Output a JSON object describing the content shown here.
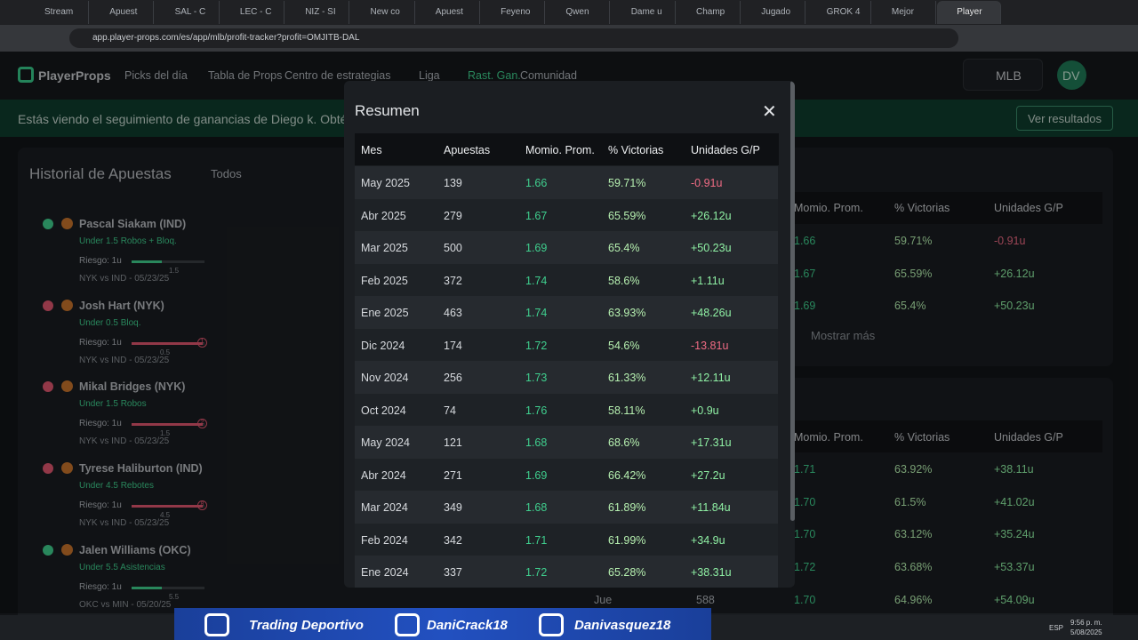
{
  "browser": {
    "tabs": [
      "Stream",
      "Apuest",
      "SAL - C",
      "LEC - C",
      "NIZ - SI",
      "New co",
      "Apuest",
      "Feyeno",
      "Qwen",
      "Dame u",
      "Champ",
      "Jugado",
      "GROK 4",
      "Mejor",
      "Player"
    ],
    "url": "app.player-props.com/es/app/mlb/profit-tracker?profit=OMJITB-DAL"
  },
  "nav": {
    "brand": "PlayerProps",
    "items": [
      "Picks del día",
      "Tabla de Props",
      "Centro de estrategias",
      "Liga",
      "Rast. Gan.",
      "Comunidad"
    ],
    "league": "MLB",
    "avatar": "DV"
  },
  "banner": {
    "text": "Estás viendo el seguimiento de ganancias de Diego k. Obtén",
    "button": "Ver resultados"
  },
  "history": {
    "title": "Historial de Apuestas",
    "filter": "Todos",
    "bets": [
      {
        "name": "Pascal Siakam (IND)",
        "market": "Under 1.5 Robos + Bloq.",
        "risk": "Riesgo: 1u",
        "line": "1.5",
        "game": "NYK vs IND - 05/23/25",
        "won": true
      },
      {
        "name": "Josh Hart (NYK)",
        "market": "Under 0.5 Bloq.",
        "risk": "Riesgo: 1u",
        "line": "0.5",
        "marker": "1",
        "game": "NYK vs IND - 05/23/25",
        "won": false
      },
      {
        "name": "Mikal Bridges (NYK)",
        "market": "Under 1.5 Robos",
        "risk": "Riesgo: 1u",
        "line": "1.5",
        "marker": "2",
        "game": "NYK vs IND - 05/23/25",
        "won": false
      },
      {
        "name": "Tyrese Haliburton (IND)",
        "market": "Under 4.5 Rebotes",
        "risk": "Riesgo: 1u",
        "line": "4.5",
        "marker": "8",
        "game": "NYK vs IND - 05/23/25",
        "won": false
      },
      {
        "name": "Jalen Williams (OKC)",
        "market": "Under 5.5 Asistencias",
        "risk": "Riesgo: 1u",
        "line": "5.5",
        "game": "OKC vs MIN - 05/20/25",
        "won": true
      }
    ]
  },
  "background_table": {
    "headers": [
      "Momio. Prom.",
      "% Victorias",
      "Unidades G/P"
    ],
    "rows": [
      [
        "1.66",
        "59.71%",
        "-0.91u"
      ],
      [
        "1.67",
        "65.59%",
        "+26.12u"
      ],
      [
        "1.69",
        "65.4%",
        "+50.23u"
      ]
    ],
    "more": "Mostrar más",
    "headers2": [
      "Momio. Prom.",
      "% Victorias",
      "Unidades G/P"
    ],
    "rows2": [
      [
        "1.71",
        "63.92%",
        "+38.11u"
      ],
      [
        "1.70",
        "61.5%",
        "+41.02u"
      ],
      [
        "1.70",
        "63.12%",
        "+35.24u"
      ],
      [
        "1.72",
        "63.68%",
        "+53.37u"
      ],
      [
        "1.70",
        "64.96%",
        "+54.09u"
      ]
    ],
    "last_row_lead": [
      "Jue",
      "588"
    ]
  },
  "modal": {
    "title": "Resumen",
    "columns": [
      "Mes",
      "Apuestas",
      "Momio. Prom.",
      "% Victorias",
      "Unidades G/P"
    ],
    "rows": [
      [
        "May 2025",
        "139",
        "1.66",
        "59.71%",
        "-0.91u"
      ],
      [
        "Abr 2025",
        "279",
        "1.67",
        "65.59%",
        "+26.12u"
      ],
      [
        "Mar 2025",
        "500",
        "1.69",
        "65.4%",
        "+50.23u"
      ],
      [
        "Feb 2025",
        "372",
        "1.74",
        "58.6%",
        "+1.11u"
      ],
      [
        "Ene 2025",
        "463",
        "1.74",
        "63.93%",
        "+48.26u"
      ],
      [
        "Dic 2024",
        "174",
        "1.72",
        "54.6%",
        "-13.81u"
      ],
      [
        "Nov 2024",
        "256",
        "1.73",
        "61.33%",
        "+12.11u"
      ],
      [
        "Oct 2024",
        "74",
        "1.76",
        "58.11%",
        "+0.9u"
      ],
      [
        "May 2024",
        "121",
        "1.68",
        "68.6%",
        "+17.31u"
      ],
      [
        "Abr 2024",
        "271",
        "1.69",
        "66.42%",
        "+27.2u"
      ],
      [
        "Mar 2024",
        "349",
        "1.68",
        "61.89%",
        "+11.84u"
      ],
      [
        "Feb 2024",
        "342",
        "1.71",
        "61.99%",
        "+34.9u"
      ],
      [
        "Ene 2024",
        "337",
        "1.72",
        "65.28%",
        "+38.31u"
      ]
    ]
  },
  "overlay": [
    "Trading Deportivo",
    "DaniCrack18",
    "Danivasquez18"
  ],
  "taskbar": {
    "lang": "ESP",
    "time": "9:56 p. m.",
    "date": "5/08/2025"
  }
}
